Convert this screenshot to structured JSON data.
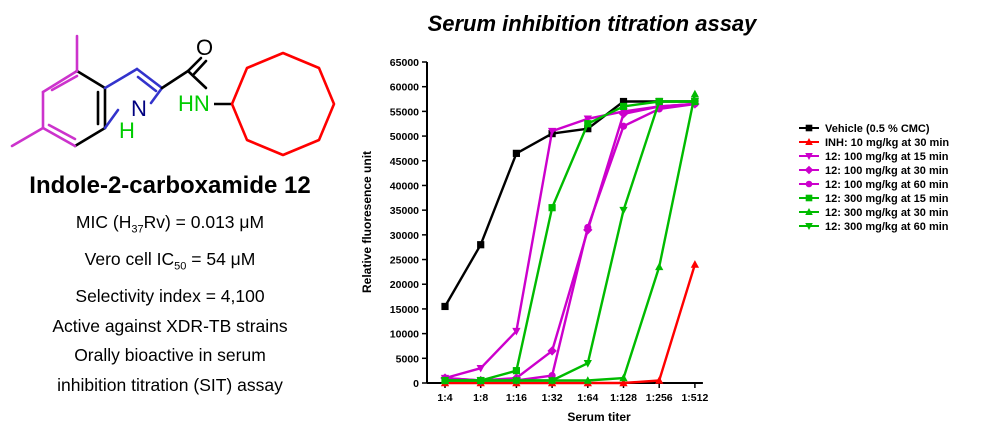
{
  "molecule": {
    "atom_O": "O",
    "atom_N_ring": "N",
    "atom_H_ring": "H",
    "atom_HN": "HN",
    "colors": {
      "bond": "#000000",
      "methyl": "#cc33cc",
      "pyrrole_bonds": "#3333cc",
      "nh": "#00cc00",
      "cyclooctyl": "#ff0000"
    }
  },
  "compound": {
    "title": "Indole-2-carboxamide 12",
    "mic_prefix": "MIC (H",
    "mic_sub": "37",
    "mic_suffix": "Rv) = 0.013 μM",
    "vero_prefix": "Vero cell IC",
    "vero_sub": "50",
    "vero_suffix": " = 54 μM",
    "selectivity": "Selectivity index = 4,100",
    "active": "Active against XDR-TB strains",
    "oral_1": "Orally bioactive in serum",
    "oral_2": "inhibition titration (SIT) assay"
  },
  "chart_data": {
    "type": "line",
    "title": "Serum inhibition titration assay",
    "xlabel": "Serum titer",
    "ylabel": "Relative fluoresence unit",
    "categories": [
      "1:4",
      "1:8",
      "1:16",
      "1:32",
      "1:64",
      "1:128",
      "1:256",
      "1:512"
    ],
    "ylim": [
      0,
      65000
    ],
    "yticks": [
      0,
      5000,
      10000,
      15000,
      20000,
      25000,
      30000,
      35000,
      40000,
      45000,
      50000,
      55000,
      60000,
      65000
    ],
    "legend_position": "right",
    "series": [
      {
        "name": "Vehicle (0.5 % CMC)",
        "color": "#000000",
        "marker": "square",
        "values": [
          15500,
          28000,
          46500,
          50500,
          51500,
          57000,
          57000,
          57000
        ]
      },
      {
        "name": "INH: 10 mg/kg at 30 min",
        "color": "#ff0000",
        "marker": "triangle-up",
        "values": [
          0,
          0,
          0,
          0,
          0,
          0,
          500,
          24000
        ]
      },
      {
        "name": "12: 100 mg/kg at 15 min",
        "color": "#cc00cc",
        "marker": "triangle-down",
        "values": [
          1000,
          3000,
          10500,
          51000,
          53500,
          55000,
          56000,
          56500
        ]
      },
      {
        "name": "12: 100 mg/kg at 30 min",
        "color": "#cc00cc",
        "marker": "diamond",
        "values": [
          1000,
          500,
          1000,
          6500,
          31000,
          54500,
          56000,
          56500
        ]
      },
      {
        "name": "12: 100 mg/kg at 60 min",
        "color": "#cc00cc",
        "marker": "circle",
        "values": [
          1000,
          500,
          500,
          1500,
          31500,
          52000,
          55500,
          56500
        ]
      },
      {
        "name": "12: 300 mg/kg at 15 min",
        "color": "#00bb00",
        "marker": "square",
        "values": [
          500,
          500,
          2500,
          35500,
          52500,
          56000,
          57000,
          57000
        ]
      },
      {
        "name": "12: 300 mg/kg at 30 min",
        "color": "#00bb00",
        "marker": "triangle-up",
        "values": [
          500,
          500,
          500,
          500,
          500,
          1000,
          23500,
          58500
        ]
      },
      {
        "name": "12: 300 mg/kg at 60 min",
        "color": "#00bb00",
        "marker": "triangle-down",
        "values": [
          500,
          500,
          500,
          500,
          4000,
          35000,
          57000,
          57000
        ]
      }
    ]
  }
}
